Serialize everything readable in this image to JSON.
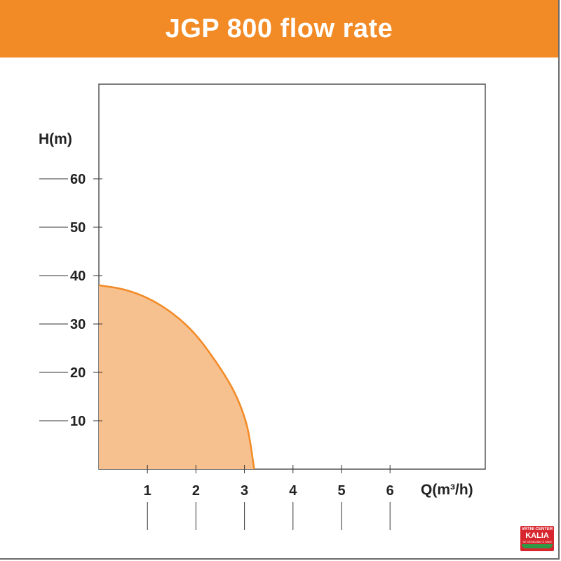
{
  "header": {
    "title": "JGP 800 flow rate"
  },
  "colors": {
    "accent": "#f28a25",
    "fill": "#f7c08f",
    "curve": "#f28a25"
  },
  "logo": {
    "line1": "VRTNI CENTER",
    "line2": "KALIA",
    "line3": "SE VESELIMO S VAMI"
  },
  "chart_data": {
    "type": "area",
    "title": "",
    "xlabel": "Q(m³/h)",
    "ylabel": "H(m)",
    "xlim": [
      0,
      8
    ],
    "ylim": [
      0,
      80
    ],
    "x_ticks": [
      1,
      2,
      3,
      4,
      5,
      6
    ],
    "y_ticks": [
      10,
      20,
      30,
      40,
      50,
      60
    ],
    "grid": false,
    "series": [
      {
        "x": [
          0,
          0.5,
          1.0,
          1.5,
          2.0,
          2.5,
          2.8,
          3.0,
          3.1,
          3.2
        ],
        "y": [
          38,
          37.3,
          35.5,
          32.5,
          28,
          21,
          16,
          11,
          7,
          0
        ]
      }
    ]
  }
}
